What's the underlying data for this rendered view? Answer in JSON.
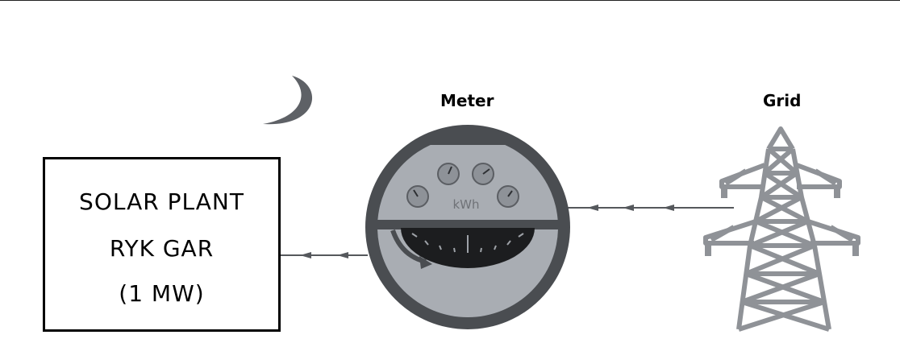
{
  "plant": {
    "line1": "SOLAR PLANT",
    "line2": "RYK GAR",
    "line3": "(1 MW)"
  },
  "meter": {
    "title": "Meter",
    "unit": "kWh"
  },
  "grid": {
    "title": "Grid"
  },
  "icons": [
    "moon-icon",
    "electric-meter-icon",
    "transmission-tower-icon",
    "flow-arrow-icon"
  ],
  "colors": {
    "meter_body": "#4a4d51",
    "meter_face": "#a9adb3",
    "tower": "#8f9297",
    "line": "#4b4e52"
  }
}
